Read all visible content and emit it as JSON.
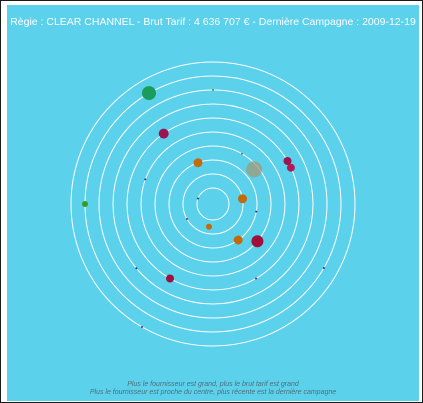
{
  "header": {
    "text": "Règie : CLEAR CHANNEL - Brut Tarif : 4 636 707 € - Dernière Campagne : 2009-12-19"
  },
  "footer": {
    "line1": "Plus le fournisseur est grand, plus le brut tarif est grand",
    "line2": "Plus le fournisseur est proche du centre, plus récente est la dernière campagne"
  },
  "colors": {
    "panel_background": "#5bd1ec",
    "ring": "#ffffff",
    "header_text": "#ffffff",
    "footer_text": "#4f6f7a"
  },
  "chart_data": {
    "type": "scatter",
    "subtype": "polar-radar",
    "rings": 10,
    "legend": [],
    "title": "Règie : CLEAR CHANNEL - Brut Tarif : 4 636 707 € - Dernière Campagne : 2009-12-19",
    "notes": [
      "Plus le fournisseur est grand, plus le brut tarif est grand",
      "Plus le fournisseur est proche du centre, plus récente est la dernière campagne"
    ],
    "points": [
      {
        "ring": 1.5,
        "angle": 100,
        "size": 3,
        "color": "#c46a0a"
      },
      {
        "ring": 2,
        "angle": 350,
        "size": 4.5,
        "color": "#c46a0a"
      },
      {
        "ring": 3,
        "angle": 55,
        "size": 4.5,
        "color": "#c46a0a"
      },
      {
        "ring": 3,
        "angle": 250,
        "size": 4.5,
        "color": "#c46a0a"
      },
      {
        "ring": 4,
        "angle": 40,
        "size": 6,
        "color": "#a0103a"
      },
      {
        "ring": 3.7,
        "angle": 320,
        "size": 8,
        "color": "#a09a78"
      },
      {
        "ring": 6,
        "angle": 335,
        "size": 4,
        "color": "#b01c5a"
      },
      {
        "ring": 6,
        "angle": 330,
        "size": 4,
        "color": "#9c1450"
      },
      {
        "ring": 6,
        "angle": 120,
        "size": 4,
        "color": "#a0103a"
      },
      {
        "ring": 6,
        "angle": 235,
        "size": 5,
        "color": "#9c1450"
      },
      {
        "ring": 9,
        "angle": 240,
        "size": 7,
        "color": "#1a9c5c"
      },
      {
        "ring": 9,
        "angle": 180,
        "size": 3,
        "color": "#3c9a1a"
      },
      {
        "ring": 1,
        "angle": 200,
        "size": 1,
        "color": "#2a2a8a"
      },
      {
        "ring": 2,
        "angle": 150,
        "size": 1,
        "color": "#7a2a6a"
      },
      {
        "ring": 3,
        "angle": 10,
        "size": 1,
        "color": "#2a2a8a"
      },
      {
        "ring": 4,
        "angle": 300,
        "size": 1,
        "color": "#6a8a2a"
      },
      {
        "ring": 5,
        "angle": 200,
        "size": 1,
        "color": "#2a2a8a"
      },
      {
        "ring": 6,
        "angle": 60,
        "size": 1,
        "color": "#7a2a6a"
      },
      {
        "ring": 7,
        "angle": 140,
        "size": 1,
        "color": "#2a2a8a"
      },
      {
        "ring": 8,
        "angle": 270,
        "size": 1,
        "color": "#6a8a2a"
      },
      {
        "ring": 9,
        "angle": 30,
        "size": 1,
        "color": "#2a2a8a"
      },
      {
        "ring": 10,
        "angle": 120,
        "size": 1,
        "color": "#7a2a6a"
      }
    ]
  }
}
